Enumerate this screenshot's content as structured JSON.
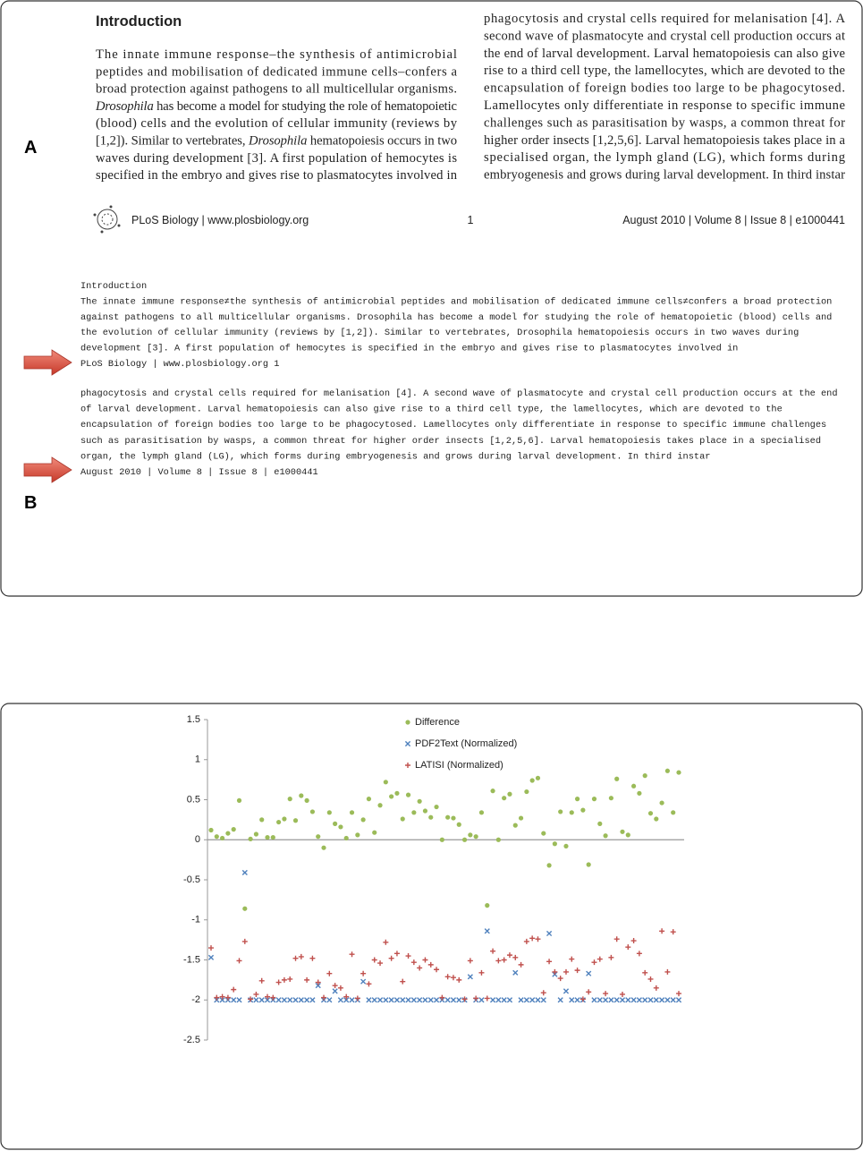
{
  "panel_a": {
    "label": "A",
    "heading": "Introduction",
    "left_column": [
      "The innate immune response–the synthesis of antimicrobial",
      "peptides and mobilisation of dedicated immune cells–confers a",
      "broad protection against pathogens to all multicellular organisms.",
      [
        "Drosophila",
        " has become a model for studying the role of hematopoietic"
      ],
      "(blood) cells and the evolution of cellular immunity (reviews by",
      [
        "[1,2]). Similar to vertebrates, ",
        "Drosophila",
        " hematopoiesis occurs in two"
      ],
      "waves during development [3]. A first population of hemocytes is",
      "specified in the embryo and gives rise to plasmatocytes involved in"
    ],
    "right_column": [
      "phagocytosis and crystal cells required for melanisation [4]. A",
      "second wave of plasmatocyte and crystal cell production occurs at",
      "the end of larval development. Larval hematopoiesis can also give",
      "rise to a third cell type, the lamellocytes, which are devoted to the",
      "encapsulation of foreign bodies too large to be phagocytosed.",
      "Lamellocytes only differentiate in response to specific immune",
      "challenges such as parasitisation by wasps, a common threat for",
      "higher order insects [1,2,5,6]. Larval hematopoiesis takes place in a",
      "specialised organ, the lymph gland (LG), which forms during",
      "embryogenesis and grows during larval development. In third instar"
    ],
    "footer": {
      "journal": "PLoS Biology | www.plosbiology.org",
      "page": "1",
      "issue": "August 2010 | Volume 8 | Issue 8 | e1000441"
    }
  },
  "panel_b": {
    "label": "B",
    "block_1": [
      "Introduction",
      "The innate immune response≠the synthesis of antimicrobial peptides and mobilisation of dedicated immune cells≠confers a broad protection",
      "against pathogens to all multicellular organisms. Drosophila has become a model for studying the role of hematopoietic (blood) cells and",
      "the evolution of cellular immunity (reviews by [1,2]). Similar to vertebrates, Drosophila hematopoiesis occurs in two waves during",
      "development [3]. A first population of hemocytes is specified in the embryo and gives rise to plasmatocytes involved in",
      "PLoS Biology | www.plosbiology.org 1"
    ],
    "block_2": [
      "phagocytosis and crystal cells required for melanisation [4]. A second wave of plasmatocyte and crystal cell production occurs at the end",
      "of larval development. Larval hematopoiesis can also give rise to a third cell type, the lamellocytes, which are devoted to the",
      "encapsulation of foreign bodies too large to be phagocytosed. Lamellocytes only differentiate in response to specific immune challenges",
      "such as parasitisation by wasps, a common threat for higher order insects [1,2,5,6]. Larval hematopoiesis takes place in a specialised",
      "organ, the lymph gland (LG), which forms during embryogenesis and grows during larval development. In third instar",
      "August 2010 | Volume 8 | Issue 8 | e1000441"
    ]
  },
  "chart_data": {
    "type": "scatter",
    "categories": [
      null,
      null,
      null,
      null,
      null,
      null,
      null,
      null,
      null,
      null,
      null,
      null,
      null,
      null,
      null,
      null,
      null,
      null,
      null,
      null,
      null,
      null,
      null,
      null,
      null,
      null,
      null,
      null,
      null,
      null,
      null,
      null,
      null,
      null,
      null,
      null,
      null,
      null,
      null,
      null,
      null,
      null,
      null,
      null,
      null,
      null,
      null,
      null,
      null,
      null,
      null,
      null,
      null,
      null,
      null,
      null,
      null,
      null,
      null,
      null,
      null,
      null,
      null,
      null,
      null,
      null,
      null,
      null,
      null,
      null,
      null,
      null,
      null,
      null,
      null,
      null,
      null,
      null,
      null,
      null,
      null,
      null,
      null,
      null
    ],
    "ylim": [
      -2.5,
      1.5
    ],
    "yticks": [
      -2.5,
      -2,
      -1.5,
      -1,
      -0.5,
      0,
      0.5,
      1,
      1.5
    ],
    "series": [
      {
        "name": "Difference",
        "color": "#9bbb59",
        "marker": "circle",
        "values": [
          0.12,
          0.04,
          0.02,
          0.08,
          0.13,
          0.49,
          -0.86,
          0.01,
          0.07,
          0.25,
          0.03,
          0.03,
          0.22,
          0.26,
          0.51,
          0.24,
          0.55,
          0.49,
          0.35,
          0.04,
          -0.1,
          0.34,
          0.2,
          0.16,
          0.02,
          0.34,
          0.06,
          0.25,
          0.51,
          0.09,
          0.43,
          0.72,
          0.54,
          0.58,
          0.26,
          0.56,
          0.34,
          0.48,
          0.36,
          0.28,
          0.41,
          0.0,
          0.28,
          0.27,
          0.19,
          0.0,
          0.06,
          0.04,
          0.34,
          -0.82,
          0.61,
          0.0,
          0.52,
          0.57,
          0.18,
          0.27,
          0.6,
          0.74,
          0.77,
          0.08,
          -0.32,
          -0.05,
          0.35,
          -0.08,
          0.34,
          0.51,
          0.37,
          -0.31,
          0.51,
          0.2,
          0.05,
          0.52,
          0.76,
          0.1,
          0.06,
          0.67,
          0.58,
          0.8,
          0.33,
          0.26,
          0.46,
          0.86,
          0.34,
          0.84
        ]
      },
      {
        "name": "PDF2Text (Normalized)",
        "color": "#4f81bd",
        "marker": "x",
        "values": [
          -1.47,
          -2,
          -2,
          -2,
          -2,
          -2,
          -0.41,
          -2,
          -2,
          -2,
          -2,
          -2,
          -2,
          -2,
          -2,
          -2,
          -2,
          -2,
          -2,
          -1.82,
          -2,
          -2,
          -1.89,
          -2,
          -2,
          -2,
          -2,
          -1.77,
          -2,
          -2,
          -2,
          -2,
          -2,
          -2,
          -2,
          -2,
          -2,
          -2,
          -2,
          -2,
          -2,
          -2,
          -2,
          -2,
          -2,
          -2,
          -1.71,
          -2,
          -2,
          -1.14,
          -2,
          -2,
          -2,
          -2,
          -1.66,
          -2,
          -2,
          -2,
          -2,
          -2,
          -1.17,
          -1.68,
          -2,
          -1.89,
          -2,
          -2,
          -2,
          -1.67,
          -2,
          -2,
          -2,
          -2,
          -2,
          -2,
          -2,
          -2,
          -2,
          -2,
          -2,
          -2,
          -2,
          -2,
          -2,
          -2
        ]
      },
      {
        "name": "LATISI (Normalized)",
        "color": "#c0504d",
        "marker": "plus",
        "values": [
          -1.35,
          -1.97,
          -1.96,
          -1.97,
          -1.87,
          -1.51,
          -1.27,
          -1.99,
          -1.93,
          -1.76,
          -1.96,
          -1.97,
          -1.78,
          -1.75,
          -1.74,
          -1.48,
          -1.46,
          -1.75,
          -1.48,
          -1.78,
          -1.97,
          -1.67,
          -1.82,
          -1.85,
          -1.96,
          -1.43,
          -1.98,
          -1.67,
          -1.8,
          -1.5,
          -1.54,
          -1.28,
          -1.48,
          -1.42,
          -1.77,
          -1.45,
          -1.53,
          -1.6,
          -1.5,
          -1.56,
          -1.62,
          -1.97,
          -1.71,
          -1.72,
          -1.75,
          -1.99,
          -1.51,
          -1.98,
          -1.66,
          -1.98,
          -1.39,
          -1.51,
          -1.5,
          -1.44,
          -1.47,
          -1.56,
          -1.27,
          -1.23,
          -1.24,
          -1.91,
          -1.52,
          -1.65,
          -1.73,
          -1.65,
          -1.49,
          -1.63,
          -1.99,
          -1.9,
          -1.53,
          -1.49,
          -1.92,
          -1.47,
          -1.24,
          -1.93,
          -1.34,
          -1.26,
          -1.42,
          -1.66,
          -1.74,
          -1.85,
          -1.14,
          -1.65,
          -1.15,
          -1.92
        ]
      }
    ]
  }
}
